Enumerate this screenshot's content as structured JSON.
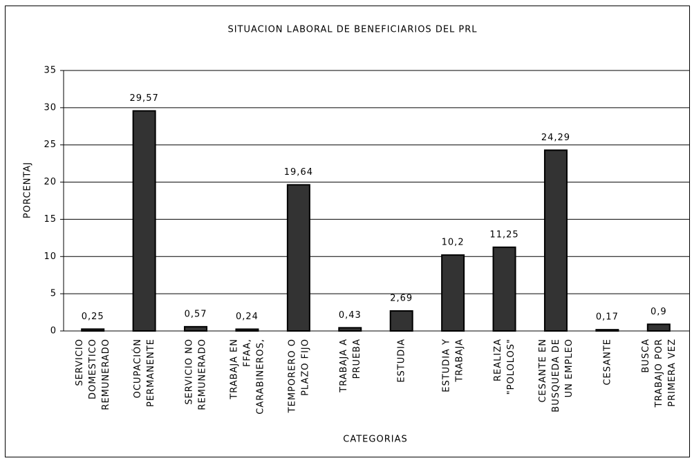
{
  "chart_data": {
    "type": "bar",
    "title": "SITUACION LABORAL DE BENEFICIARIOS DEL PRL",
    "x_label": "CATEGORIAS",
    "y_label": "PORCENTAJ",
    "categories": [
      "SERVICIO DOMESTICO REMUNERADO",
      "OCUPACIÓN PERMANENTE",
      "SERVICIO NO REMUNERADO",
      "TRABAJA EN FFAA, CARABINEROS,",
      "TEMPORERO O PLAZO FIJO",
      "TRABAJA A PRUEBA",
      "ESTUDIA",
      "ESTUDIA Y TRABAJA",
      "REALIZA \"POLOLOS\"",
      "CESANTE EN BUSQUEDA DE UN EMPLEO",
      "CESANTE",
      "BUSCA TRABAJO POR PRIMERA VEZ"
    ],
    "values": [
      0.25,
      29.57,
      0.57,
      0.24,
      19.64,
      0.43,
      2.69,
      10.2,
      11.25,
      24.29,
      0.17,
      0.9
    ],
    "value_labels": [
      "0,25",
      "29,57",
      "0,57",
      "0,24",
      "19,64",
      "0,43",
      "2,69",
      "10,2",
      "11,25",
      "24,29",
      "0,17",
      "0,9"
    ],
    "color": "#333333",
    "ylim": [
      0,
      35
    ],
    "yticks": [
      0,
      5,
      10,
      15,
      20,
      25,
      30,
      35
    ],
    "grid": true
  }
}
